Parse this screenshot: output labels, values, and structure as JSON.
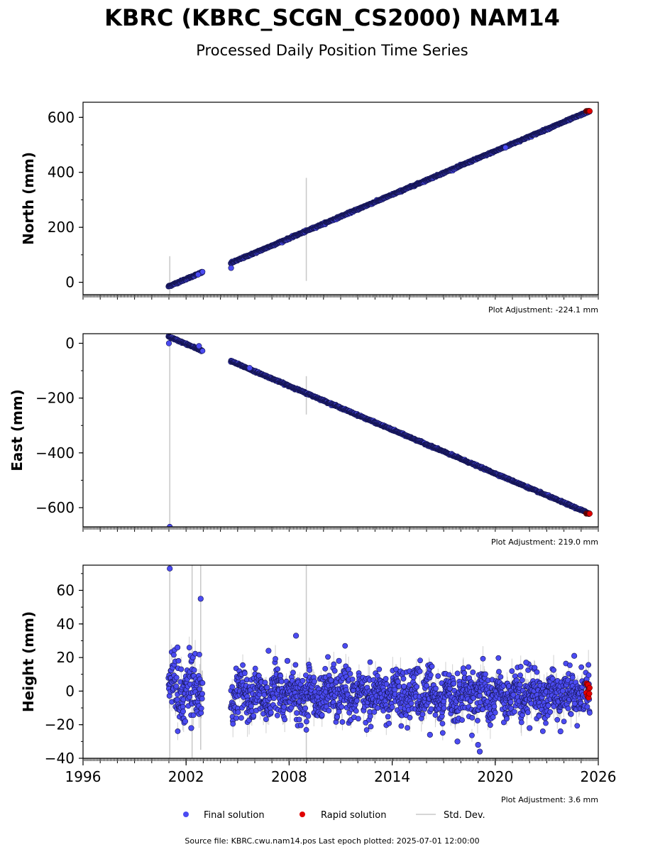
{
  "title": "KBRC (KBRC_SCGN_CS2000) NAM14",
  "subtitle": "Processed Daily Position Time Series",
  "source_line": "Source file: KBRC.cwu.nam14.pos  Last epoch plotted: 2025-07-01 12:00:00",
  "legend": {
    "final": "Final solution",
    "rapid": "Rapid solution",
    "std": "Std. Dev."
  },
  "colors": {
    "final": "#4b4bf2",
    "rapid": "#e00000",
    "std": "#c8c8c8",
    "edge": "#141450"
  },
  "chart_data": [
    {
      "type": "scatter",
      "ylabel": "North (mm)",
      "adjustment": "Plot Adjustment: -224.1 mm",
      "xlim": [
        1996,
        2026
      ],
      "ylim": [
        -45,
        655
      ],
      "yticks": [
        0,
        200,
        400,
        600
      ],
      "x_ticks": [
        1996,
        2002,
        2008,
        2014,
        2020,
        2026
      ],
      "segments": [
        {
          "x": [
            2000.97,
            2002.96
          ],
          "y": [
            -15,
            37
          ]
        },
        {
          "x": [
            2004.6,
            2025.5
          ],
          "y": [
            70,
            623
          ]
        }
      ],
      "errorbars": [
        {
          "x": 2001.05,
          "y_low": -45,
          "y_high": 95
        },
        {
          "x": 2009.0,
          "y_low": 5,
          "y_high": 380
        }
      ],
      "rapid": {
        "x_start": 2025.3,
        "x_end": 2025.5,
        "y": 623
      },
      "outliers": [
        {
          "x": 2004.62,
          "y": 52
        },
        {
          "x": 2020.6,
          "y": 490
        },
        {
          "x": 2002.7,
          "y": 28
        }
      ]
    },
    {
      "type": "scatter",
      "ylabel": "East (mm)",
      "adjustment": "Plot Adjustment: 219.0 mm",
      "xlim": [
        1996,
        2026
      ],
      "ylim": [
        -670,
        35
      ],
      "yticks": [
        -600,
        -400,
        -200,
        0
      ],
      "x_ticks": [
        1996,
        2002,
        2008,
        2014,
        2020,
        2026
      ],
      "segments": [
        {
          "x": [
            2000.97,
            2002.96
          ],
          "y": [
            25,
            -28
          ]
        },
        {
          "x": [
            2004.6,
            2025.5
          ],
          "y": [
            -65,
            -622
          ]
        }
      ],
      "errorbars": [
        {
          "x": 2001.05,
          "y_low": -670,
          "y_high": 35
        },
        {
          "x": 2009.0,
          "y_low": -260,
          "y_high": -120
        }
      ],
      "rapid": {
        "x_start": 2025.3,
        "x_end": 2025.5,
        "y": -622
      },
      "outliers": [
        {
          "x": 2001.05,
          "y": -670
        },
        {
          "x": 2001.0,
          "y": 0
        },
        {
          "x": 2002.75,
          "y": -10
        },
        {
          "x": 2005.7,
          "y": -90
        }
      ]
    },
    {
      "type": "scatter",
      "ylabel": "Height (mm)",
      "adjustment": "Plot Adjustment: 3.6 mm",
      "xlabel_ticks": [
        "1996",
        "2002",
        "2008",
        "2014",
        "2020",
        "2026"
      ],
      "xlim": [
        1996,
        2026
      ],
      "ylim": [
        -40,
        75
      ],
      "yticks": [
        -40,
        -20,
        0,
        20,
        40,
        60
      ],
      "x_ticks": [
        1996,
        2002,
        2008,
        2014,
        2020,
        2026
      ],
      "segments": [
        {
          "x": [
            2000.97,
            2002.96
          ],
          "y_center": 3,
          "scatter": 8
        },
        {
          "x": [
            2004.6,
            2025.5
          ],
          "y_center": -2,
          "scatter": 7
        }
      ],
      "errorbars": [
        {
          "x": 2001.05,
          "y_low": -40,
          "y_high": 75
        },
        {
          "x": 2002.35,
          "y_low": -40,
          "y_high": 75
        },
        {
          "x": 2002.85,
          "y_low": -35,
          "y_high": 75
        },
        {
          "x": 2009.0,
          "y_low": -40,
          "y_high": 75
        }
      ],
      "rapid": {
        "x_start": 2025.3,
        "x_end": 2025.5,
        "y_low": -8,
        "y_high": 5
      },
      "outliers": [
        {
          "x": 2001.05,
          "y": 73
        },
        {
          "x": 2002.85,
          "y": 55
        },
        {
          "x": 2008.4,
          "y": 33
        },
        {
          "x": 2001.5,
          "y": 26
        },
        {
          "x": 2001.95,
          "y": -18
        },
        {
          "x": 2002.3,
          "y": -22
        },
        {
          "x": 2010.9,
          "y": 18
        },
        {
          "x": 2021.8,
          "y": 17
        },
        {
          "x": 2024.6,
          "y": 21
        },
        {
          "x": 2017.8,
          "y": -30
        },
        {
          "x": 2019.1,
          "y": -36
        },
        {
          "x": 2019.0,
          "y": -32
        },
        {
          "x": 2016.2,
          "y": -26
        },
        {
          "x": 2022.0,
          "y": -22
        },
        {
          "x": 2023.8,
          "y": -24
        },
        {
          "x": 2006.8,
          "y": 24
        },
        {
          "x": 2007.9,
          "y": 18
        }
      ]
    }
  ]
}
